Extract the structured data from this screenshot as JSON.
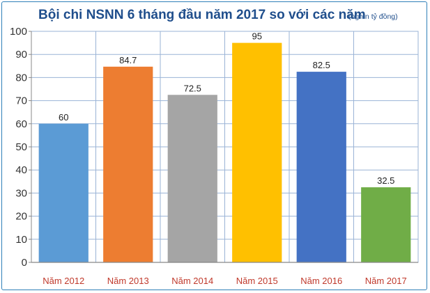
{
  "chart_data": {
    "type": "bar",
    "title": "Bội chi NSNN 6 tháng đầu năm 2017 so với các năm",
    "subtitle": "(nghìn tỷ đồng)",
    "categories": [
      "Năm 2012",
      "Năm 2013",
      "Năm 2014",
      "Năm 2015",
      "Năm 2016",
      "Năm 2017"
    ],
    "values": [
      60,
      84.7,
      72.5,
      95,
      82.5,
      32.5
    ],
    "value_labels": [
      "60",
      "84.7",
      "72.5",
      "95",
      "82.5",
      "32.5"
    ],
    "colors": [
      "#5b9bd5",
      "#ed7d31",
      "#a5a5a5",
      "#ffc000",
      "#4472c4",
      "#70ad47"
    ],
    "ylim": [
      0,
      100
    ],
    "yticks": [
      "0",
      "10",
      "20",
      "30",
      "40",
      "50",
      "60",
      "70",
      "80",
      "90",
      "100"
    ],
    "xlabel": "",
    "ylabel": "",
    "grid": true,
    "legend": "none"
  }
}
